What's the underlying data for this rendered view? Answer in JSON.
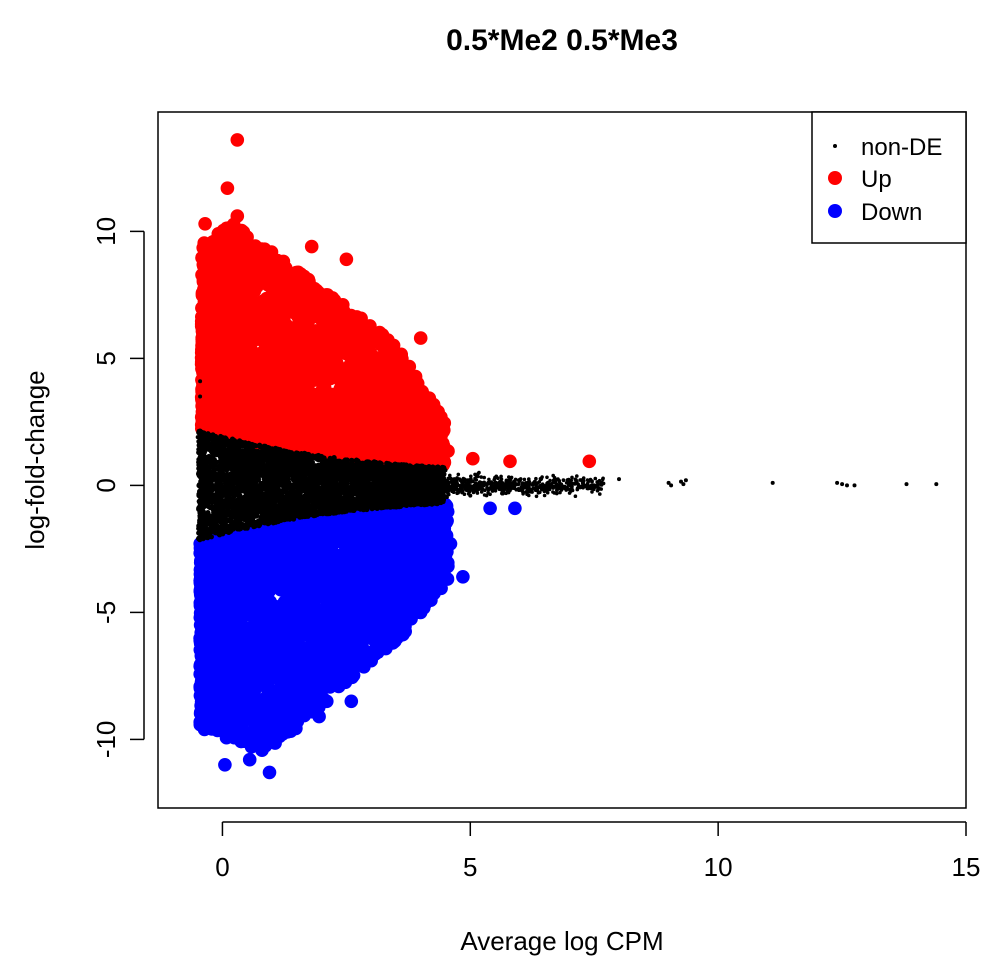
{
  "chart_data": {
    "type": "scatter",
    "title": "0.5*Me2 0.5*Me3",
    "xlabel": "Average log CPM",
    "ylabel": "log-fold-change",
    "xlim": [
      -1.3,
      15
    ],
    "ylim": [
      -12.7,
      14.7
    ],
    "xticks": [
      0,
      5,
      10,
      15
    ],
    "yticks": [
      -10,
      -5,
      0,
      5,
      10
    ],
    "grid": false,
    "legend_position": "top-right",
    "colors": {
      "non-DE": "#000000",
      "Up": "#ff0000",
      "Down": "#0000ff"
    },
    "series": [
      {
        "name": "non-DE",
        "points": [
          [
            8.0,
            0.25
          ],
          [
            9.0,
            0.1
          ],
          [
            9.05,
            0.0
          ],
          [
            9.25,
            0.15
          ],
          [
            9.3,
            0.05
          ],
          [
            9.35,
            0.2
          ],
          [
            11.1,
            0.1
          ],
          [
            12.4,
            0.1
          ],
          [
            12.5,
            0.05
          ],
          [
            12.6,
            0.0
          ],
          [
            12.75,
            0.0
          ],
          [
            13.8,
            0.05
          ],
          [
            14.4,
            0.05
          ],
          [
            4.5,
            0.6
          ],
          [
            5.0,
            -0.4
          ],
          [
            5.5,
            0.3
          ],
          [
            6.0,
            0.2
          ],
          [
            6.5,
            -0.2
          ],
          [
            7.0,
            0.1
          ],
          [
            7.5,
            0.0
          ],
          [
            -0.45,
            3.5
          ],
          [
            -0.45,
            -1.5
          ],
          [
            -0.5,
            1.9
          ],
          [
            -0.45,
            4.1
          ]
        ]
      },
      {
        "name": "Up",
        "points": [
          [
            0.3,
            13.6
          ],
          [
            0.1,
            11.7
          ],
          [
            -0.35,
            10.3
          ],
          [
            0.3,
            10.6
          ],
          [
            0.85,
            9.3
          ],
          [
            1.8,
            9.4
          ],
          [
            2.5,
            8.9
          ],
          [
            4.0,
            5.8
          ],
          [
            4.35,
            2.9
          ],
          [
            4.55,
            1.35
          ],
          [
            5.05,
            1.05
          ],
          [
            5.8,
            0.95
          ],
          [
            7.4,
            0.95
          ]
        ]
      },
      {
        "name": "Down",
        "points": [
          [
            0.05,
            -11.0
          ],
          [
            0.95,
            -11.3
          ],
          [
            0.55,
            -10.8
          ],
          [
            -0.2,
            -9.2
          ],
          [
            4.85,
            -3.6
          ],
          [
            4.6,
            -2.3
          ],
          [
            4.0,
            -5.0
          ],
          [
            3.0,
            -6.9
          ],
          [
            2.6,
            -8.5
          ],
          [
            1.95,
            -9.1
          ],
          [
            5.4,
            -0.9
          ],
          [
            5.9,
            -0.9
          ]
        ]
      }
    ]
  }
}
